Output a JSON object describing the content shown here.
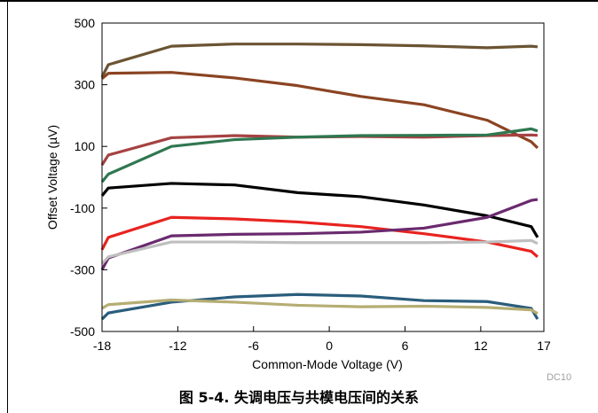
{
  "chart_data": {
    "type": "line",
    "xlabel": "Common-Mode Voltage (V)",
    "ylabel": "Offset Voltage (µV)",
    "xlim": [
      -18,
      17
    ],
    "ylim": [
      -500,
      500
    ],
    "xticks": [
      -18,
      -12,
      -6,
      0,
      6,
      12,
      17
    ],
    "yticks": [
      500,
      300,
      100,
      -100,
      -300,
      -500
    ],
    "grid": false,
    "watermark": "DC10",
    "series": [
      {
        "color": "#6b5433",
        "x": [
          -18,
          -17.5,
          -12.5,
          -7.5,
          -2.5,
          2.5,
          7.5,
          12.5,
          16,
          16.5
        ],
        "y": [
          325,
          365,
          425,
          432,
          432,
          430,
          426,
          420,
          425,
          423
        ]
      },
      {
        "color": "#8b4422",
        "x": [
          -18,
          -17.5,
          -12.5,
          -7.5,
          -2.5,
          2.5,
          7.5,
          12.5,
          16,
          16.5
        ],
        "y": [
          320,
          337,
          340,
          322,
          297,
          262,
          235,
          185,
          115,
          95
        ]
      },
      {
        "color": "#a64242",
        "x": [
          -18,
          -17.5,
          -12.5,
          -7.5,
          -2.5,
          2.5,
          7.5,
          12.5,
          16,
          16.5
        ],
        "y": [
          40,
          72,
          128,
          135,
          130,
          132,
          130,
          135,
          137,
          136
        ]
      },
      {
        "color": "#2f7750",
        "x": [
          -18,
          -17.5,
          -12.5,
          -7.5,
          -2.5,
          2.5,
          7.5,
          12.5,
          16,
          16.5
        ],
        "y": [
          -15,
          10,
          100,
          122,
          130,
          135,
          136,
          137,
          157,
          150
        ]
      },
      {
        "color": "#000000",
        "x": [
          -18,
          -17.5,
          -12.5,
          -7.5,
          -2.5,
          2.5,
          7.5,
          12.5,
          16,
          16.5
        ],
        "y": [
          -60,
          -35,
          -20,
          -25,
          -50,
          -63,
          -90,
          -125,
          -160,
          -195
        ]
      },
      {
        "color": "#e8231f",
        "x": [
          -18,
          -17.5,
          -12.5,
          -7.5,
          -2.5,
          2.5,
          7.5,
          12.5,
          16,
          16.5
        ],
        "y": [
          -235,
          -195,
          -130,
          -135,
          -145,
          -160,
          -183,
          -210,
          -240,
          -258
        ]
      },
      {
        "color": "#6a2a6e",
        "x": [
          -18,
          -17.5,
          -12.5,
          -7.5,
          -2.5,
          2.5,
          7.5,
          12.5,
          16,
          16.5
        ],
        "y": [
          -300,
          -262,
          -190,
          -185,
          -183,
          -178,
          -165,
          -130,
          -75,
          -72
        ]
      },
      {
        "color": "#bfbfbf",
        "x": [
          -18,
          -17.5,
          -12.5,
          -7.5,
          -2.5,
          2.5,
          7.5,
          12.5,
          16,
          16.5
        ],
        "y": [
          -280,
          -258,
          -210,
          -210,
          -212,
          -212,
          -212,
          -210,
          -205,
          -215
        ]
      },
      {
        "color": "#2a5d7c",
        "x": [
          -18,
          -17.5,
          -12.5,
          -7.5,
          -2.5,
          2.5,
          7.5,
          12.5,
          16,
          16.5
        ],
        "y": [
          -460,
          -440,
          -405,
          -388,
          -380,
          -385,
          -400,
          -403,
          -425,
          -460
        ]
      },
      {
        "color": "#b5ad73",
        "x": [
          -18,
          -17.5,
          -12.5,
          -7.5,
          -2.5,
          2.5,
          7.5,
          12.5,
          16,
          16.5
        ],
        "y": [
          -425,
          -413,
          -398,
          -405,
          -415,
          -420,
          -418,
          -422,
          -430,
          -442
        ]
      }
    ]
  },
  "caption": "图 5-4. 失调电压与共模电压间的关系"
}
